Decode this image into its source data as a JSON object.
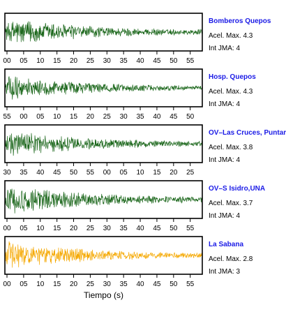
{
  "chart_data": {
    "type": "line",
    "xlabel": "Tiempo (s)",
    "colors": {
      "green": "#1a661a",
      "orange": "#f5a800",
      "station_label": "#1a1ae6"
    },
    "panels": [
      {
        "station": "Bomberos Quepos",
        "acel_label": "Acel. Max. 4.3",
        "jma_label": "Int JMA: 4",
        "color": "#1a661a",
        "tick_labels": [
          "00",
          "05",
          "10",
          "15",
          "20",
          "25",
          "30",
          "35",
          "40",
          "45",
          "50",
          "55"
        ],
        "envelope": {
          "peak_amplitude": 0.9,
          "decay": "exponential"
        }
      },
      {
        "station": "Hosp. Quepos",
        "acel_label": "Acel. Max. 4.3",
        "jma_label": "Int JMA: 4",
        "color": "#1a661a",
        "tick_labels": [
          "55",
          "00",
          "05",
          "10",
          "15",
          "20",
          "25",
          "30",
          "35",
          "40",
          "45",
          "50"
        ],
        "envelope": {
          "peak_amplitude": 0.75,
          "decay": "exponential"
        }
      },
      {
        "station": "OV–Las Cruces, Puntar",
        "acel_label": "Acel. Max. 3.8",
        "jma_label": "Int JMA: 4",
        "color": "#1a661a",
        "tick_labels": [
          "30",
          "35",
          "40",
          "45",
          "50",
          "55",
          "00",
          "05",
          "10",
          "15",
          "20",
          "25"
        ],
        "envelope": {
          "peak_amplitude": 0.85,
          "decay": "exponential"
        }
      },
      {
        "station": "OV–S Isidro,UNA",
        "acel_label": "Acel. Max. 3.7",
        "jma_label": "Int JMA: 4",
        "color": "#1a661a",
        "tick_labels": [
          "00",
          "05",
          "10",
          "15",
          "20",
          "25",
          "30",
          "35",
          "40",
          "45",
          "50",
          "55"
        ],
        "envelope": {
          "peak_amplitude": 0.95,
          "decay": "exponential"
        }
      },
      {
        "station": "La Sabana",
        "acel_label": "Acel. Max. 2.8",
        "jma_label": "Int JMA: 3",
        "color": "#f5a800",
        "tick_labels": [
          "00",
          "05",
          "10",
          "15",
          "20",
          "25",
          "30",
          "35",
          "40",
          "45",
          "50",
          "55"
        ],
        "envelope": {
          "peak_amplitude": 0.9,
          "decay": "exponential"
        }
      }
    ]
  }
}
